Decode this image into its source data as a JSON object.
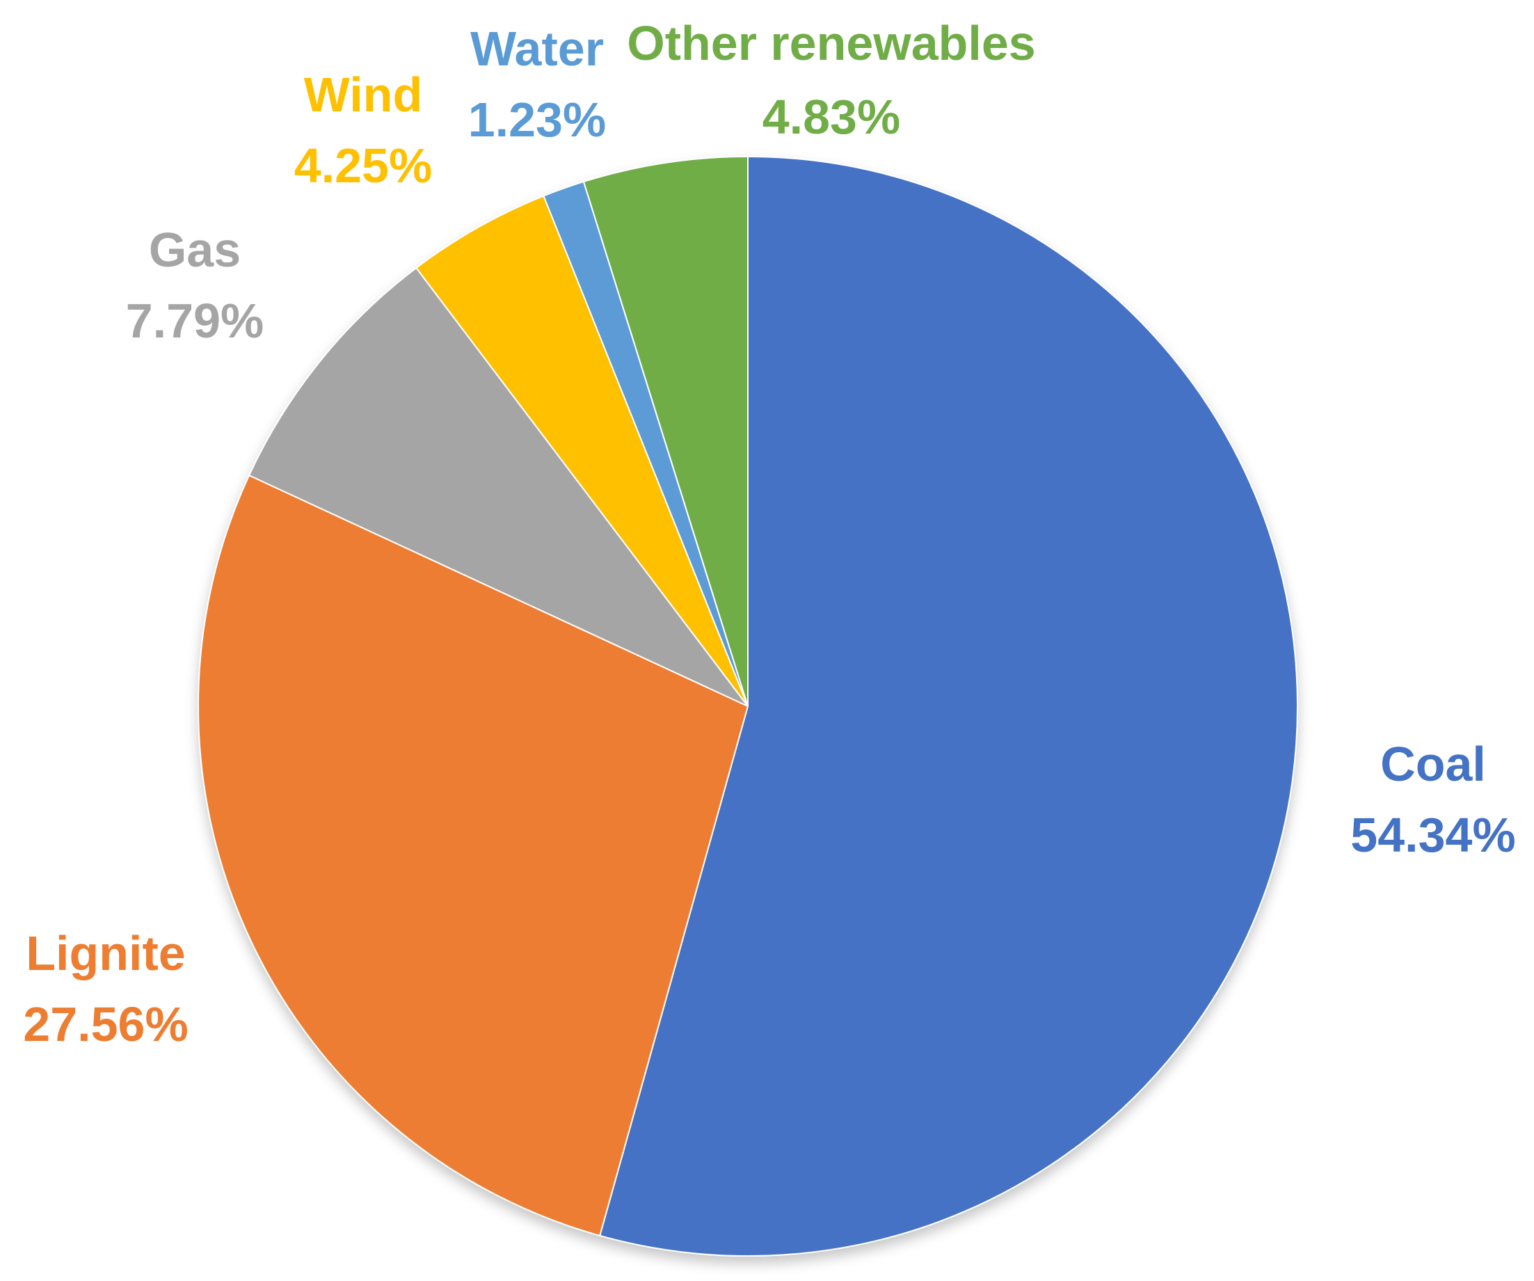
{
  "chart_data": {
    "type": "pie",
    "start": "top",
    "direction": "clockwise",
    "slices": [
      {
        "name": "Coal",
        "value": 54.34,
        "label": "54.34%",
        "color": "#4472C4"
      },
      {
        "name": "Lignite",
        "value": 27.56,
        "label": "27.56%",
        "color": "#ED7D31"
      },
      {
        "name": "Gas",
        "value": 7.79,
        "label": "7.79%",
        "color": "#A5A5A5"
      },
      {
        "name": "Wind",
        "value": 4.25,
        "label": "4.25%",
        "color": "#FFC000"
      },
      {
        "name": "Water",
        "value": 1.23,
        "label": "1.23%",
        "color": "#5B9BD5"
      },
      {
        "name": "Other renewables",
        "value": 4.83,
        "label": "4.83%",
        "color": "#70AD47"
      }
    ]
  }
}
